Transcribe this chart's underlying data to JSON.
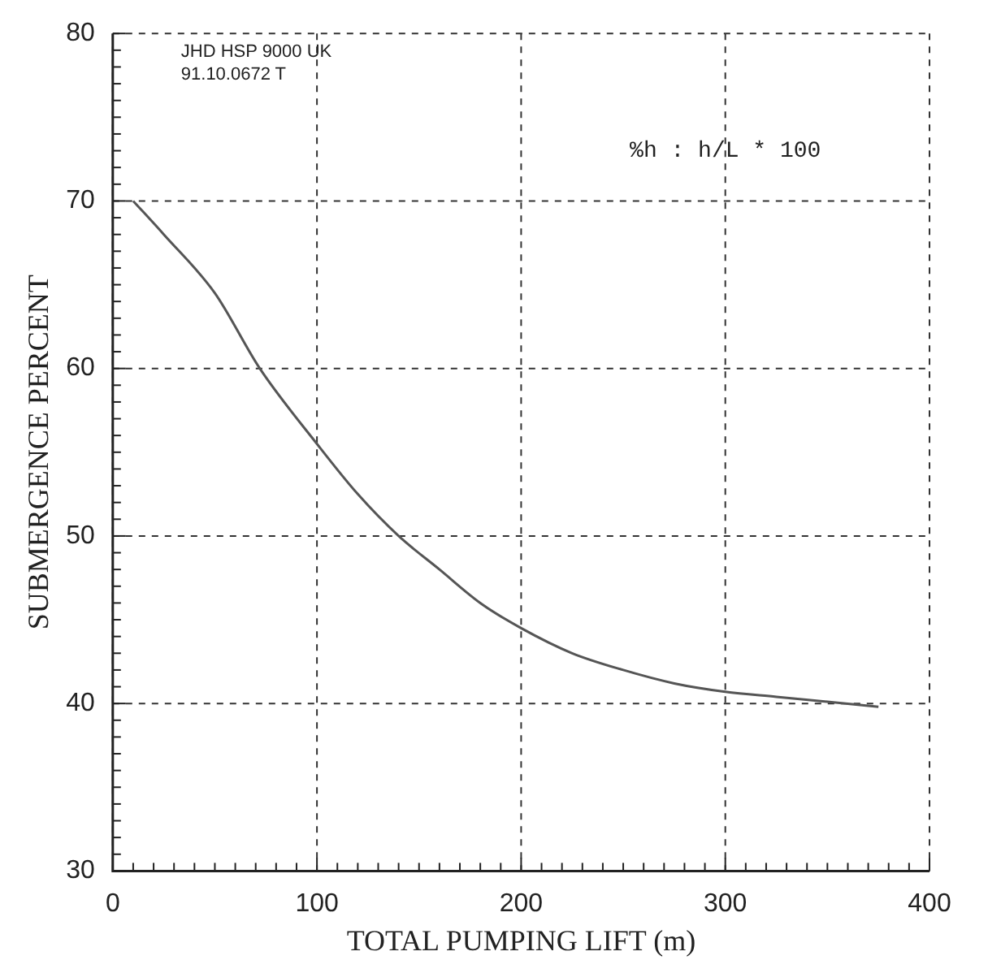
{
  "chart_data": {
    "type": "line",
    "xlabel": "TOTAL PUMPING LIFT (m)",
    "ylabel": "SUBMERGENCE PERCENT",
    "x": [
      10,
      25,
      50,
      72,
      100,
      120,
      140,
      160,
      180,
      200,
      225,
      250,
      275,
      300,
      325,
      350,
      375
    ],
    "series": [
      {
        "color": "#555555",
        "values": [
          70,
          68,
          64.5,
          60,
          55.5,
          52.5,
          50,
          48,
          46,
          44.5,
          43,
          42,
          41.2,
          40.7,
          40.4,
          40.1,
          39.8
        ]
      }
    ],
    "xlim": [
      0,
      400
    ],
    "xticks": [
      0,
      100,
      200,
      300,
      400
    ],
    "ylim": [
      30,
      80
    ],
    "yticks": [
      30,
      40,
      50,
      60,
      70,
      80
    ],
    "grid": true,
    "legend": false,
    "marker": "none",
    "line_style": "solid",
    "annotations": [
      "JHD HSP 9000 UK",
      "91.10.0672 T",
      "%h : h/L * 100"
    ]
  }
}
